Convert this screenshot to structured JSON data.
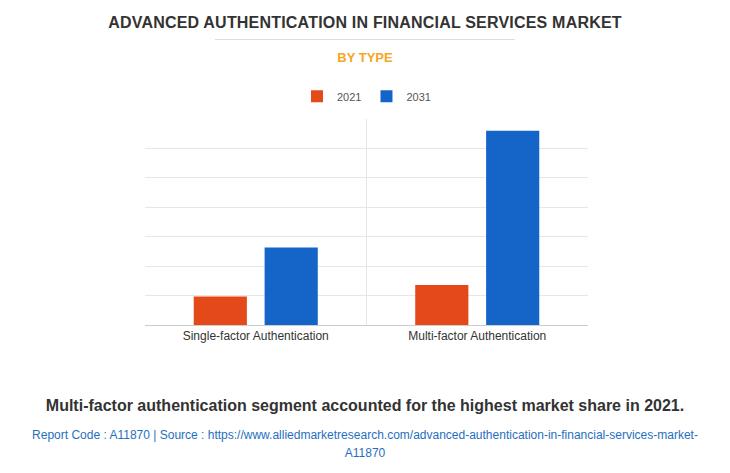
{
  "chart_data": {
    "type": "bar",
    "title": "ADVANCED AUTHENTICATION IN FINANCIAL SERVICES MARKET",
    "subtitle": "BY TYPE",
    "annotations": [
      "Multi-factor authentication segment accounted for the highest market share in 2021.",
      "Report Code : A11870  |  Source : https://www.alliedmarketresearch.com/advanced-authentication-in-financial-services-market-A11870"
    ],
    "categories": [
      "Single-factor Authentication",
      "Multi-factor Authentication"
    ],
    "series": [
      {
        "name": "2021",
        "color": "#e4491a",
        "values": [
          0.97,
          1.36
        ]
      },
      {
        "name": "2031",
        "color": "#1565c8",
        "values": [
          2.63,
          6.6
        ]
      }
    ],
    "ylim": [
      0,
      7
    ],
    "yticks": [
      0,
      1,
      2,
      3,
      4,
      5,
      6,
      7
    ],
    "grid": true,
    "legend": "top",
    "tick_labels": "x"
  }
}
